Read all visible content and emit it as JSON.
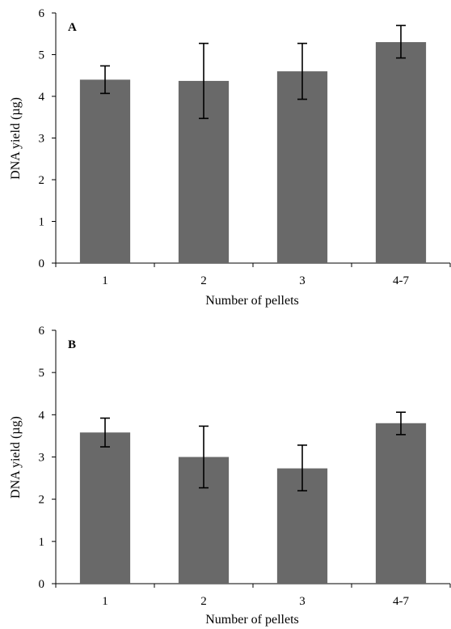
{
  "chart_data": [
    {
      "type": "bar",
      "panel_label": "A",
      "categories": [
        "1",
        "2",
        "3",
        "4-7"
      ],
      "values": [
        4.4,
        4.37,
        4.6,
        5.3
      ],
      "error_low": [
        4.07,
        3.47,
        3.93,
        4.92
      ],
      "error_high": [
        4.73,
        5.27,
        5.27,
        5.7
      ],
      "xlabel": "Number of pellets",
      "ylabel": "DNA yield (µg)",
      "ylim": [
        0,
        6
      ],
      "yticks": [
        0,
        1,
        2,
        3,
        4,
        5,
        6
      ],
      "bar_color": "#696969",
      "grid": false
    },
    {
      "type": "bar",
      "panel_label": "B",
      "categories": [
        "1",
        "2",
        "3",
        "4-7"
      ],
      "values": [
        3.58,
        3.0,
        2.73,
        3.8
      ],
      "error_low": [
        3.24,
        2.27,
        2.2,
        3.53
      ],
      "error_high": [
        3.92,
        3.73,
        3.28,
        4.06
      ],
      "xlabel": "Number of pellets",
      "ylabel": "DNA yield (µg)",
      "ylim": [
        0,
        6
      ],
      "yticks": [
        0,
        1,
        2,
        3,
        4,
        5,
        6
      ],
      "bar_color": "#696969",
      "grid": false
    }
  ]
}
